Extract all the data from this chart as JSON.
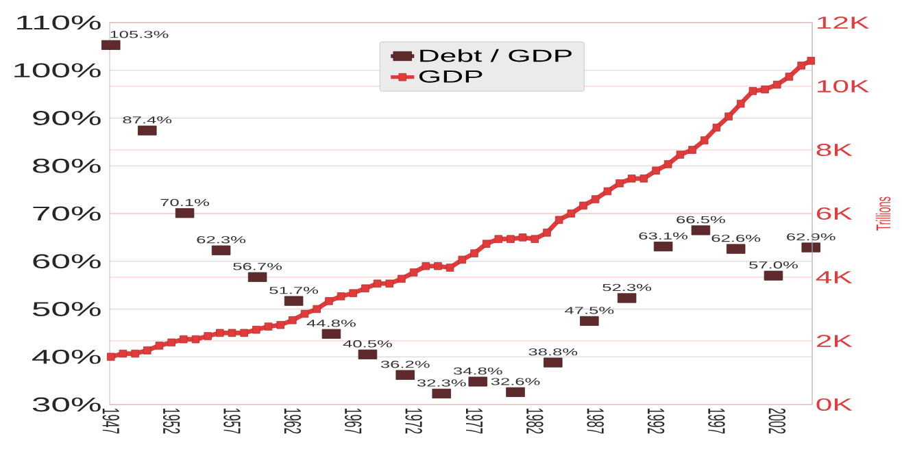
{
  "chart_data": {
    "type": "line",
    "xlim": [
      1946.9,
      2004.9
    ],
    "xticks": [
      1947,
      1952,
      1957,
      1962,
      1967,
      1972,
      1977,
      1982,
      1987,
      1992,
      1997,
      2002
    ],
    "ylim": [
      30,
      110
    ],
    "yticks": [
      {
        "value": 30,
        "label": "30%"
      },
      {
        "value": 40,
        "label": "40%"
      },
      {
        "value": 50,
        "label": "50%"
      },
      {
        "value": 60,
        "label": "60%"
      },
      {
        "value": 70,
        "label": "70%"
      },
      {
        "value": 80,
        "label": "80%"
      },
      {
        "value": 90,
        "label": "90%"
      },
      {
        "value": 100,
        "label": "100%"
      },
      {
        "value": 110,
        "label": "110%"
      }
    ],
    "y2lim": [
      0,
      12
    ],
    "y2ticks": [
      {
        "value": 0,
        "label": "0K"
      },
      {
        "value": 2,
        "label": "2K"
      },
      {
        "value": 4,
        "label": "4K"
      },
      {
        "value": 6,
        "label": "6K"
      },
      {
        "value": 8,
        "label": "8K"
      },
      {
        "value": 10,
        "label": "10K"
      },
      {
        "value": 12,
        "label": "12K"
      }
    ],
    "y2label": "Trillions",
    "series": [
      {
        "name": "Debt / GDP",
        "type": "scatter",
        "color": "#5e2a2c",
        "x": [
          1947.0,
          1950.0,
          1953.1,
          1956.1,
          1959.1,
          1962.1,
          1965.2,
          1968.2,
          1971.3,
          1974.3,
          1977.3,
          1980.4,
          1983.5,
          1986.5,
          1989.6,
          1992.6,
          1995.7,
          1998.6,
          2001.7,
          2004.8
        ],
        "values": [
          105.3,
          87.4,
          70.1,
          62.3,
          56.7,
          51.7,
          44.8,
          40.5,
          36.2,
          32.3,
          34.8,
          32.6,
          38.8,
          47.5,
          52.3,
          63.1,
          66.5,
          62.6,
          57.0,
          62.9
        ],
        "value_labels": [
          "105.3%",
          "87.4%",
          "70.1%",
          "62.3%",
          "56.7%",
          "51.7%",
          "44.8%",
          "40.5%",
          "36.2%",
          "32.3%",
          "34.8%",
          "32.6%",
          "38.8%",
          "47.5%",
          "52.3%",
          "63.1%",
          "66.5%",
          "62.6%",
          "57.0%",
          "62.9%"
        ]
      },
      {
        "name": "GDP",
        "axis": "y2",
        "color": "#e03c3c",
        "x": [
          1947,
          1948,
          1949,
          1950,
          1951,
          1952,
          1953,
          1954,
          1955,
          1956,
          1957,
          1958,
          1959,
          1960,
          1961,
          1962,
          1963,
          1964,
          1965,
          1966,
          1967,
          1968,
          1969,
          1970,
          1971,
          1972,
          1973,
          1974,
          1975,
          1976,
          1977,
          1978,
          1979,
          1980,
          1981,
          1982,
          1983,
          1984,
          1985,
          1986,
          1987,
          1988,
          1989,
          1990,
          1991,
          1992,
          1993,
          1994,
          1995,
          1996,
          1997,
          1998,
          1999,
          2000,
          2001,
          2002,
          2003,
          2004,
          2004.8
        ],
        "values": [
          1.5,
          1.6,
          1.6,
          1.7,
          1.85,
          1.95,
          2.05,
          2.05,
          2.15,
          2.25,
          2.25,
          2.25,
          2.35,
          2.45,
          2.5,
          2.65,
          2.85,
          3.0,
          3.25,
          3.4,
          3.5,
          3.65,
          3.8,
          3.8,
          3.95,
          4.15,
          4.35,
          4.35,
          4.3,
          4.55,
          4.75,
          5.05,
          5.2,
          5.2,
          5.25,
          5.2,
          5.4,
          5.8,
          6.0,
          6.25,
          6.45,
          6.7,
          6.95,
          7.1,
          7.1,
          7.35,
          7.55,
          7.85,
          8.0,
          8.3,
          8.7,
          9.05,
          9.45,
          9.85,
          9.9,
          10.05,
          10.3,
          10.65,
          10.8
        ]
      }
    ],
    "marker": "square",
    "grid": "y",
    "legend": "top"
  }
}
